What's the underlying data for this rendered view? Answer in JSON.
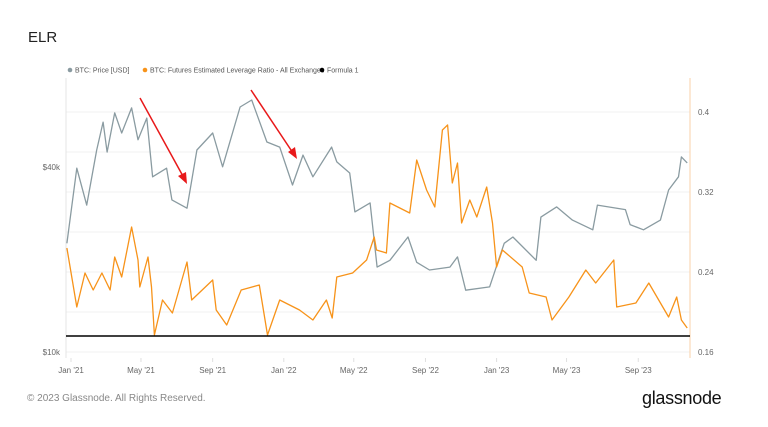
{
  "title": "ELR",
  "footer": "© 2023 Glassnode. All Rights Reserved.",
  "logo": "glassnode",
  "chart_data": {
    "type": "line",
    "title": "ELR",
    "legend_position": "top-left",
    "grid": true,
    "legend": [
      {
        "name": "BTC: Price [USD]",
        "color": "#8a9ba1"
      },
      {
        "name": "BTC: Futures Estimated Leverage Ratio - All Exchanges",
        "color": "#f7931a"
      },
      {
        "name": "Formula 1",
        "color": "#000000"
      }
    ],
    "x_ticks": [
      "Jan '21",
      "May '21",
      "Sep '21",
      "Jan '22",
      "May '22",
      "Sep '22",
      "Jan '23",
      "May '23",
      "Sep '23"
    ],
    "x_tick_dates": [
      "2021-01-01",
      "2021-05-01",
      "2021-09-01",
      "2022-01-01",
      "2022-05-01",
      "2022-09-01",
      "2023-01-01",
      "2023-05-01",
      "2023-09-01"
    ],
    "y_left": {
      "scale": "log",
      "ticks": [
        "$10k",
        "$40k"
      ],
      "tick_values": [
        10000,
        40000
      ]
    },
    "y_right": {
      "scale": "linear",
      "ticks": [
        "0.16",
        "0.24",
        "0.32",
        "0.4"
      ],
      "tick_values": [
        0.16,
        0.24,
        0.32,
        0.4
      ]
    },
    "series": [
      {
        "name": "BTC: Price [USD]",
        "axis": "left",
        "color": "#8a9ba1",
        "points": [
          [
            "2020-12-25",
            22600
          ],
          [
            "2021-01-11",
            39700
          ],
          [
            "2021-01-28",
            30100
          ],
          [
            "2021-02-14",
            45500
          ],
          [
            "2021-02-25",
            56100
          ],
          [
            "2021-03-04",
            44800
          ],
          [
            "2021-03-17",
            60100
          ],
          [
            "2021-03-29",
            51700
          ],
          [
            "2021-04-15",
            62400
          ],
          [
            "2021-04-26",
            49100
          ],
          [
            "2021-05-11",
            57800
          ],
          [
            "2021-05-21",
            37200
          ],
          [
            "2021-06-14",
            39700
          ],
          [
            "2021-06-23",
            31300
          ],
          [
            "2021-07-19",
            29400
          ],
          [
            "2021-08-05",
            45500
          ],
          [
            "2021-09-01",
            51700
          ],
          [
            "2021-09-18",
            40100
          ],
          [
            "2021-10-18",
            62800
          ],
          [
            "2021-11-07",
            66200
          ],
          [
            "2021-12-03",
            48300
          ],
          [
            "2021-12-25",
            46500
          ],
          [
            "2022-01-16",
            35000
          ],
          [
            "2022-02-03",
            43800
          ],
          [
            "2022-02-20",
            37200
          ],
          [
            "2022-03-24",
            46500
          ],
          [
            "2022-04-02",
            41600
          ],
          [
            "2022-04-24",
            38300
          ],
          [
            "2022-05-03",
            28600
          ],
          [
            "2022-05-29",
            30600
          ],
          [
            "2022-06-10",
            18900
          ],
          [
            "2022-07-02",
            19900
          ],
          [
            "2022-08-02",
            23700
          ],
          [
            "2022-08-17",
            19600
          ],
          [
            "2022-09-08",
            18500
          ],
          [
            "2022-10-13",
            18900
          ],
          [
            "2022-10-26",
            20400
          ],
          [
            "2022-11-09",
            15900
          ],
          [
            "2022-12-20",
            16300
          ],
          [
            "2023-01-14",
            22600
          ],
          [
            "2023-01-29",
            23700
          ],
          [
            "2023-03-10",
            19900
          ],
          [
            "2023-03-18",
            27500
          ],
          [
            "2023-04-14",
            29700
          ],
          [
            "2023-05-11",
            26900
          ],
          [
            "2023-06-15",
            25000
          ],
          [
            "2023-06-23",
            30100
          ],
          [
            "2023-08-10",
            29100
          ],
          [
            "2023-08-18",
            26000
          ],
          [
            "2023-09-10",
            25000
          ],
          [
            "2023-10-09",
            26900
          ],
          [
            "2023-10-23",
            33700
          ],
          [
            "2023-11-09",
            37200
          ],
          [
            "2023-11-14",
            43200
          ],
          [
            "2023-11-24",
            41300
          ]
        ]
      },
      {
        "name": "BTC: Futures Estimated Leverage Ratio - All Exchanges",
        "axis": "right",
        "color": "#f7931a",
        "points": [
          [
            "2020-12-25",
            0.264
          ],
          [
            "2021-01-11",
            0.205
          ],
          [
            "2021-01-25",
            0.239
          ],
          [
            "2021-02-08",
            0.222
          ],
          [
            "2021-02-23",
            0.239
          ],
          [
            "2021-03-09",
            0.222
          ],
          [
            "2021-03-17",
            0.255
          ],
          [
            "2021-03-29",
            0.235
          ],
          [
            "2021-04-15",
            0.285
          ],
          [
            "2021-04-26",
            0.252
          ],
          [
            "2021-04-29",
            0.225
          ],
          [
            "2021-05-13",
            0.255
          ],
          [
            "2021-05-19",
            0.225
          ],
          [
            "2021-05-24",
            0.177
          ],
          [
            "2021-06-07",
            0.212
          ],
          [
            "2021-06-24",
            0.199
          ],
          [
            "2021-07-19",
            0.25
          ],
          [
            "2021-07-27",
            0.212
          ],
          [
            "2021-09-01",
            0.232
          ],
          [
            "2021-09-07",
            0.202
          ],
          [
            "2021-09-25",
            0.187
          ],
          [
            "2021-10-20",
            0.222
          ],
          [
            "2021-11-20",
            0.227
          ],
          [
            "2021-12-04",
            0.177
          ],
          [
            "2021-12-25",
            0.212
          ],
          [
            "2022-01-28",
            0.202
          ],
          [
            "2022-02-20",
            0.192
          ],
          [
            "2022-03-15",
            0.212
          ],
          [
            "2022-03-25",
            0.194
          ],
          [
            "2022-04-02",
            0.235
          ],
          [
            "2022-04-29",
            0.239
          ],
          [
            "2022-05-23",
            0.252
          ],
          [
            "2022-06-05",
            0.275
          ],
          [
            "2022-06-09",
            0.262
          ],
          [
            "2022-06-26",
            0.259
          ],
          [
            "2022-07-02",
            0.309
          ],
          [
            "2022-08-05",
            0.299
          ],
          [
            "2022-08-17",
            0.352
          ],
          [
            "2022-09-03",
            0.322
          ],
          [
            "2022-09-17",
            0.305
          ],
          [
            "2022-09-30",
            0.382
          ],
          [
            "2022-10-09",
            0.387
          ],
          [
            "2022-10-17",
            0.329
          ],
          [
            "2022-10-26",
            0.349
          ],
          [
            "2022-11-02",
            0.289
          ],
          [
            "2022-11-16",
            0.312
          ],
          [
            "2022-11-28",
            0.295
          ],
          [
            "2022-12-15",
            0.325
          ],
          [
            "2022-12-25",
            0.289
          ],
          [
            "2023-01-01",
            0.245
          ],
          [
            "2023-01-11",
            0.262
          ],
          [
            "2023-02-14",
            0.245
          ],
          [
            "2023-02-26",
            0.219
          ],
          [
            "2023-03-27",
            0.215
          ],
          [
            "2023-04-06",
            0.192
          ],
          [
            "2023-05-05",
            0.215
          ],
          [
            "2023-06-03",
            0.242
          ],
          [
            "2023-06-20",
            0.229
          ],
          [
            "2023-07-21",
            0.252
          ],
          [
            "2023-07-26",
            0.205
          ],
          [
            "2023-08-28",
            0.209
          ],
          [
            "2023-09-19",
            0.229
          ],
          [
            "2023-10-06",
            0.212
          ],
          [
            "2023-10-23",
            0.195
          ],
          [
            "2023-11-06",
            0.215
          ],
          [
            "2023-11-14",
            0.192
          ],
          [
            "2023-11-24",
            0.184
          ]
        ]
      },
      {
        "name": "Formula 1",
        "axis": "right",
        "color": "#000000",
        "constant": 0.176
      }
    ]
  }
}
